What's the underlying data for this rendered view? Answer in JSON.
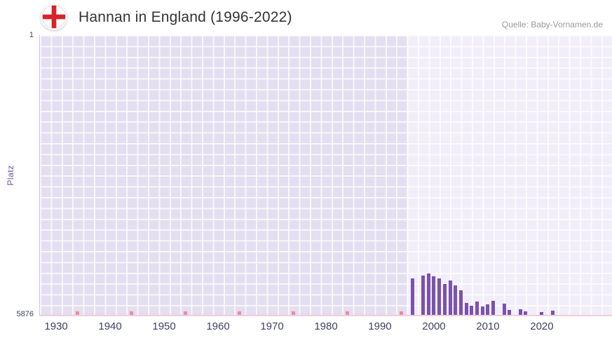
{
  "header": {
    "title": "Hannan in England (1996-2022)",
    "source": "Quelle: Baby-Vornamen.de",
    "flag_icon": "england-flag-icon"
  },
  "chart_data": {
    "type": "bar",
    "title": "Hannan in England (1996-2022)",
    "xlabel": "",
    "ylabel": "Platz",
    "y_axis": {
      "min": 1,
      "max": 5876,
      "inverted": true,
      "top_label": "1",
      "bottom_label": "5876"
    },
    "x_axis": {
      "min": 1927,
      "max": 2033,
      "tick_years": [
        1930,
        1940,
        1950,
        1960,
        1970,
        1980,
        1990,
        2000,
        2010,
        2020
      ]
    },
    "highlight_region": {
      "from": 1995,
      "to": 2033
    },
    "unranked_marker_years": [
      1934,
      1944,
      1954,
      1964,
      1974,
      1984,
      1994
    ],
    "legend": "none",
    "grid": "on",
    "series": [
      {
        "name": "Platz",
        "points": [
          {
            "year": 1996,
            "rank": 5100
          },
          {
            "year": 1997,
            "rank": null
          },
          {
            "year": 1998,
            "rank": 5040
          },
          {
            "year": 1999,
            "rank": 4990
          },
          {
            "year": 2000,
            "rank": 5050
          },
          {
            "year": 2001,
            "rank": 5100
          },
          {
            "year": 2002,
            "rank": 5220
          },
          {
            "year": 2003,
            "rank": 5140
          },
          {
            "year": 2004,
            "rank": 5250
          },
          {
            "year": 2005,
            "rank": 5350
          },
          {
            "year": 2006,
            "rank": 5610
          },
          {
            "year": 2007,
            "rank": 5670
          },
          {
            "year": 2008,
            "rank": 5580
          },
          {
            "year": 2009,
            "rank": 5690
          },
          {
            "year": 2010,
            "rank": 5640
          },
          {
            "year": 2011,
            "rank": 5570
          },
          {
            "year": 2012,
            "rank": null
          },
          {
            "year": 2013,
            "rank": 5630
          },
          {
            "year": 2014,
            "rank": 5760
          },
          {
            "year": 2015,
            "rank": null
          },
          {
            "year": 2016,
            "rank": 5750
          },
          {
            "year": 2017,
            "rank": 5790
          },
          {
            "year": 2018,
            "rank": null
          },
          {
            "year": 2019,
            "rank": null
          },
          {
            "year": 2020,
            "rank": 5800
          },
          {
            "year": 2021,
            "rank": null
          },
          {
            "year": 2022,
            "rank": 5780
          }
        ]
      }
    ],
    "colors": {
      "bar": "#7b52ae",
      "marker": "#ee8ba0",
      "plot_bg": "#e3def0",
      "plot_bg_highlight": "#f1eef9",
      "axis_text": "#3f3f63",
      "ylabel_text": "#6c55a3",
      "baseline": "#f2cdd8",
      "title_text": "#333333",
      "source_text": "#999999",
      "flag_red": "#d8232a"
    }
  }
}
